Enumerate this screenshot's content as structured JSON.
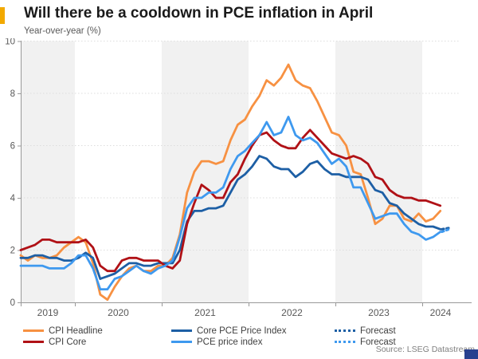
{
  "header": {
    "title": "Will there be a cooldown in PCE inflation in April",
    "subtitle": "Year-over-year (%)"
  },
  "source": "Source: LSEG Datastream",
  "colors": {
    "cpi_headline": "#F79142",
    "cpi_core": "#B01116",
    "core_pce": "#1D5FA5",
    "pce": "#3E99EF",
    "band": "#F1F1F1",
    "grid": "#DDDDDD",
    "axis": "#999999",
    "tick_label": "#595959",
    "accent_bar": "#F2A900",
    "brand": "#28408F"
  },
  "legend": {
    "items": [
      {
        "label": "CPI Headline",
        "color_key": "cpi_headline",
        "dotted": false
      },
      {
        "label": "CPI Core",
        "color_key": "cpi_core",
        "dotted": false
      },
      {
        "label": "Core PCE Price Index",
        "color_key": "core_pce",
        "dotted": false
      },
      {
        "label": "PCE price index",
        "color_key": "pce",
        "dotted": false
      },
      {
        "label": "Forecast",
        "color_key": "core_pce",
        "dotted": true
      },
      {
        "label": "Forecast",
        "color_key": "pce",
        "dotted": true
      }
    ]
  },
  "chart_data": {
    "type": "line",
    "title": "Will there be a cooldown in PCE inflation in April",
    "ylabel": "Year-over-year (%)",
    "frequency": "monthly",
    "x_start": {
      "year": 2019,
      "month": 5
    },
    "x_end": {
      "year": 2024,
      "month": 3
    },
    "x_tick_labels": [
      "2019",
      "2020",
      "2021",
      "2022",
      "2023",
      "2024"
    ],
    "ylim": [
      0,
      10
    ],
    "yticks": [
      0,
      2,
      4,
      6,
      8,
      10
    ],
    "grid": "horizontal-dotted",
    "shaded_years": [
      2019,
      2021,
      2023
    ],
    "legend_position": "bottom",
    "series": [
      {
        "name": "CPI Headline",
        "color_key": "cpi_headline",
        "values": [
          1.8,
          1.6,
          1.8,
          1.7,
          1.7,
          1.8,
          2.1,
          2.3,
          2.5,
          2.3,
          1.5,
          0.3,
          0.1,
          0.6,
          1.0,
          1.3,
          1.4,
          1.2,
          1.2,
          1.4,
          1.4,
          1.7,
          2.6,
          4.2,
          5.0,
          5.4,
          5.4,
          5.3,
          5.4,
          6.2,
          6.8,
          7.0,
          7.5,
          7.9,
          8.5,
          8.3,
          8.6,
          9.1,
          8.5,
          8.3,
          8.2,
          7.7,
          7.1,
          6.5,
          6.4,
          6.0,
          5.0,
          4.9,
          4.0,
          3.0,
          3.2,
          3.7,
          3.7,
          3.2,
          3.1,
          3.4,
          3.1,
          3.2,
          3.5
        ]
      },
      {
        "name": "Core PCE Price Index",
        "color_key": "core_pce",
        "values": [
          1.7,
          1.7,
          1.8,
          1.8,
          1.7,
          1.7,
          1.6,
          1.6,
          1.7,
          1.9,
          1.7,
          0.9,
          1.0,
          1.1,
          1.3,
          1.5,
          1.5,
          1.4,
          1.4,
          1.5,
          1.5,
          1.5,
          2.0,
          3.1,
          3.5,
          3.5,
          3.6,
          3.6,
          3.7,
          4.2,
          4.7,
          4.9,
          5.2,
          5.6,
          5.5,
          5.2,
          5.1,
          5.1,
          4.8,
          5.0,
          5.3,
          5.4,
          5.1,
          4.9,
          4.9,
          4.8,
          4.8,
          4.8,
          4.7,
          4.3,
          4.2,
          3.8,
          3.7,
          3.4,
          3.2,
          3.0,
          2.9,
          2.9,
          2.8
        ]
      },
      {
        "name": "CPI Core",
        "color_key": "cpi_core",
        "values": [
          2.0,
          2.1,
          2.2,
          2.4,
          2.4,
          2.3,
          2.3,
          2.3,
          2.3,
          2.4,
          2.1,
          1.4,
          1.2,
          1.2,
          1.6,
          1.7,
          1.7,
          1.6,
          1.6,
          1.6,
          1.4,
          1.3,
          1.6,
          3.0,
          3.8,
          4.5,
          4.3,
          4.0,
          4.0,
          4.6,
          4.9,
          5.5,
          6.0,
          6.4,
          6.5,
          6.2,
          6.0,
          5.9,
          5.9,
          6.3,
          6.6,
          6.3,
          6.0,
          5.7,
          5.6,
          5.5,
          5.6,
          5.5,
          5.3,
          4.8,
          4.7,
          4.3,
          4.1,
          4.0,
          4.0,
          3.9,
          3.9,
          3.8,
          3.7
        ]
      },
      {
        "name": "PCE price index",
        "color_key": "pce",
        "values": [
          1.4,
          1.4,
          1.4,
          1.4,
          1.3,
          1.3,
          1.3,
          1.5,
          1.8,
          1.8,
          1.3,
          0.5,
          0.5,
          0.9,
          1.0,
          1.2,
          1.4,
          1.2,
          1.1,
          1.3,
          1.4,
          1.6,
          2.5,
          3.6,
          4.0,
          4.0,
          4.2,
          4.2,
          4.4,
          5.1,
          5.6,
          5.8,
          6.1,
          6.4,
          6.9,
          6.4,
          6.5,
          7.1,
          6.4,
          6.2,
          6.3,
          6.1,
          5.7,
          5.3,
          5.5,
          5.2,
          4.4,
          4.4,
          3.8,
          3.2,
          3.3,
          3.4,
          3.4,
          3.0,
          2.7,
          2.6,
          2.4,
          2.5,
          2.7
        ]
      }
    ],
    "forecast": [
      {
        "name": "Forecast",
        "series": "Core PCE Price Index",
        "color_key": "core_pce",
        "period": {
          "year": 2024,
          "month": 4
        },
        "value": 2.85
      },
      {
        "name": "Forecast",
        "series": "PCE price index",
        "color_key": "pce",
        "period": {
          "year": 2024,
          "month": 4
        },
        "value": 2.8
      }
    ]
  }
}
